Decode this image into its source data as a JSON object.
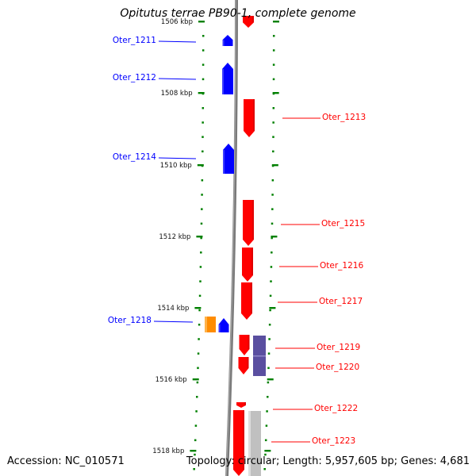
{
  "title": "Opitutus terrae PB90-1, complete genome",
  "accession": "Accession: NC_010571",
  "summary": "Topology: circular; Length: 5,957,605 bp; Genes: 4,681",
  "colors": {
    "forward": "#0000ff",
    "reverse": "#ff0000",
    "backbone": "#808080",
    "tick": "#008000",
    "orange": "#ff8c00",
    "purple": "#5a4fa0",
    "gray": "#c0c0c0"
  },
  "scale_ticks": [
    {
      "label": "1506 kbp"
    },
    {
      "label": "1508 kbp"
    },
    {
      "label": "1510 kbp"
    },
    {
      "label": "1512 kbp"
    },
    {
      "label": "1514 kbp"
    },
    {
      "label": "1516 kbp"
    },
    {
      "label": "1518 kbp"
    }
  ],
  "genes": [
    {
      "label": "Oter_1211",
      "strand": "forward"
    },
    {
      "label": "Oter_1212",
      "strand": "forward"
    },
    {
      "label": "Oter_1213",
      "strand": "reverse"
    },
    {
      "label": "Oter_1214",
      "strand": "forward"
    },
    {
      "label": "Oter_1215",
      "strand": "reverse"
    },
    {
      "label": "Oter_1216",
      "strand": "reverse"
    },
    {
      "label": "Oter_1217",
      "strand": "reverse"
    },
    {
      "label": "Oter_1218",
      "strand": "forward"
    },
    {
      "label": "Oter_1219",
      "strand": "reverse"
    },
    {
      "label": "Oter_1220",
      "strand": "reverse"
    },
    {
      "label": "Oter_1222",
      "strand": "reverse"
    },
    {
      "label": "Oter_1223",
      "strand": "reverse"
    }
  ]
}
